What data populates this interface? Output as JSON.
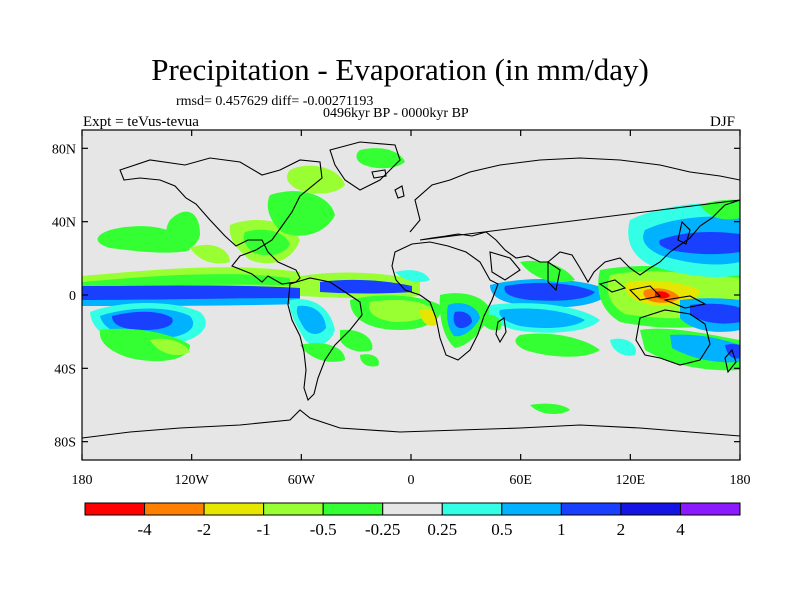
{
  "header": {
    "title": "Precipitation - Evaporation (in mm/day)",
    "stats": "rmsd= 0.457629 diff= -0.00271193",
    "period": "0496kyr BP - 0000kyr BP",
    "experiment": "Expt = teVus-tevua",
    "season": "DJF"
  },
  "map": {
    "projection": "cylindrical-equidistant",
    "lon_range": [
      -180,
      180
    ],
    "lat_range": [
      -90,
      90
    ],
    "background_color": "#e6e6e6",
    "x_ticks": [
      {
        "value": -180,
        "label": "180"
      },
      {
        "value": -120,
        "label": "120W"
      },
      {
        "value": -60,
        "label": "60W"
      },
      {
        "value": 0,
        "label": "0"
      },
      {
        "value": 60,
        "label": "60E"
      },
      {
        "value": 120,
        "label": "120E"
      },
      {
        "value": 180,
        "label": "180"
      }
    ],
    "y_ticks": [
      {
        "value": 80,
        "label": "80N"
      },
      {
        "value": 40,
        "label": "40N"
      },
      {
        "value": 0,
        "label": "0"
      },
      {
        "value": -40,
        "label": "40S"
      },
      {
        "value": -80,
        "label": "80S"
      }
    ]
  },
  "colorbar": {
    "colors": [
      "#ff0000",
      "#ff8000",
      "#e6e600",
      "#99ff33",
      "#33ff33",
      "#e6e6e6",
      "#33ffe6",
      "#00b2ff",
      "#1a40ff",
      "#1414e6",
      "#8c1aff"
    ],
    "labels": [
      "-4",
      "-2",
      "-1",
      "-0.5",
      "-0.25",
      "0.25",
      "0.5",
      "1",
      "2",
      "4"
    ]
  }
}
